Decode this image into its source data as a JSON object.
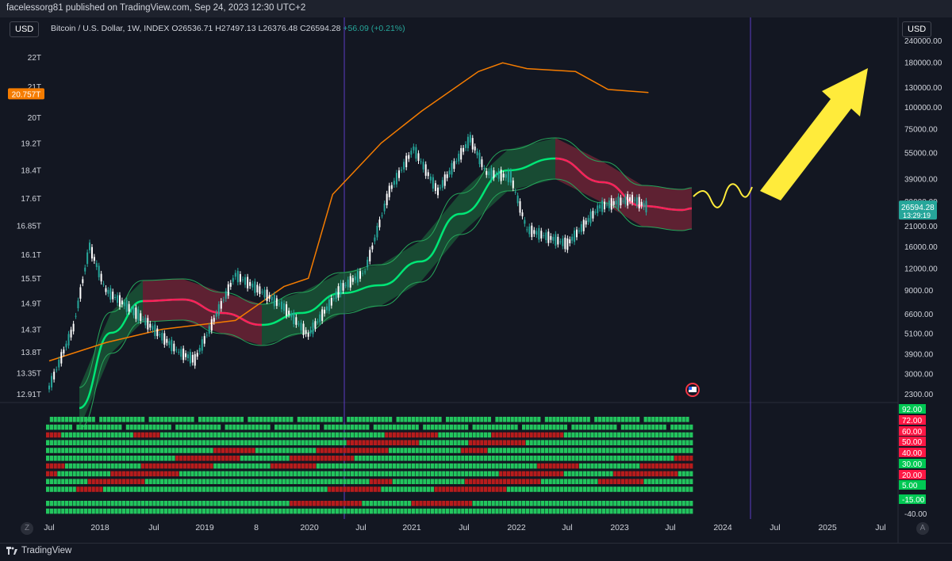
{
  "header": {
    "publisher_line": "facelessorg81 published on TradingView.com, Sep 24, 2023 12:30 UTC+2"
  },
  "currency_left": "USD",
  "currency_right": "USD",
  "legend": {
    "symbol": "Bitcoin / U.S. Dollar, 1W, INDEX",
    "open": "O26536.71",
    "high": "H27497.13",
    "low": "L26376.48",
    "close": "C26594.28",
    "change": "+56.09 (+0.21%)"
  },
  "footer": {
    "brand": "TradingView",
    "left_corner": "Z",
    "right_corner": "A"
  },
  "colors": {
    "background": "#131722",
    "candle_up": "#26a69a",
    "candle_down": "#ffffff",
    "orange_line": "#f57c00",
    "band_green": "#1b5e3a",
    "band_red": "#6b1a33",
    "midline_green": "#00e676",
    "midline_red": "#ff1f5a",
    "arrow": "#ffeb3b",
    "vline": "#5b3cc4"
  },
  "chart_data": {
    "type": "line",
    "title": "",
    "x_ticks": [
      "Jul",
      "2018",
      "Jul",
      "2019",
      "8",
      "2020",
      "Jul",
      "2021",
      "Jul",
      "2022",
      "Jul",
      "2023",
      "Jul",
      "2024",
      "Jul",
      "2025",
      "Jul"
    ],
    "left_axis_ticks": [
      "22T",
      "21T",
      "20T",
      "19.2T",
      "18.4T",
      "17.6T",
      "16.85T",
      "16.1T",
      "15.5T",
      "14.9T",
      "14.3T",
      "13.8T",
      "13.35T",
      "12.91T"
    ],
    "left_axis_marker": "20.757T",
    "right_axis_ticks": [
      "240000.00",
      "180000.00",
      "130000.00",
      "100000.00",
      "75000.00",
      "55000.00",
      "39000.00",
      "29000.00",
      "21000.00",
      "16000.00",
      "12000.00",
      "9000.00",
      "6600.00",
      "5100.00",
      "3900.00",
      "3000.00",
      "2300.00"
    ],
    "price_marker": "26594.28",
    "price_timer": "13:29:19",
    "y_scale": "log",
    "series": [
      {
        "name": "",
        "kind": "weekly price, approx",
        "x": [
          "2017-07",
          "2017-10",
          "2017-12",
          "2018-02",
          "2018-06",
          "2018-11",
          "2019-01",
          "2019-06",
          "2019-09",
          "2019-12",
          "2020-03",
          "2020-07",
          "2020-10",
          "2021-01",
          "2021-04",
          "2021-07",
          "2021-11",
          "2022-01",
          "2022-04",
          "2022-06",
          "2022-11",
          "2023-03",
          "2023-07",
          "2023-09"
        ],
        "y": [
          2500,
          5500,
          16000,
          9000,
          6500,
          4000,
          3600,
          11000,
          9000,
          7200,
          5000,
          9200,
          11500,
          33000,
          58000,
          33000,
          66000,
          42000,
          40000,
          20000,
          16500,
          27000,
          30000,
          26594
        ]
      },
      {
        "name": "",
        "kind": "orange overlay, approx (left axis, T)",
        "x": [
          "2017-07",
          "2018-02",
          "2018-09",
          "2019-06",
          "2019-12",
          "2020-03",
          "2020-06",
          "2020-12",
          "2021-05",
          "2021-12",
          "2022-03",
          "2022-06",
          "2022-12",
          "2023-04",
          "2023-09"
        ],
        "y": [
          13.6,
          14.0,
          14.3,
          14.5,
          15.3,
          15.5,
          17.7,
          19.2,
          20.2,
          21.5,
          21.8,
          21.6,
          21.5,
          20.9,
          20.8
        ]
      }
    ],
    "oscillator_levels": [
      {
        "label": "92.00",
        "color": "#00c853"
      },
      {
        "label": "72.00",
        "color": "#ff1744"
      },
      {
        "label": "60.00",
        "color": "#ff1744"
      },
      {
        "label": "50.00",
        "color": "#ff1744"
      },
      {
        "label": "40.00",
        "color": "#ff1744"
      },
      {
        "label": "30.00",
        "color": "#00c853"
      },
      {
        "label": "20.00",
        "color": "#ff1744"
      },
      {
        "label": "5.00",
        "color": "#00c853"
      },
      {
        "label": "-15.00",
        "color": "#00c853"
      }
    ],
    "oscillator_axis_tick": "-40.00"
  }
}
